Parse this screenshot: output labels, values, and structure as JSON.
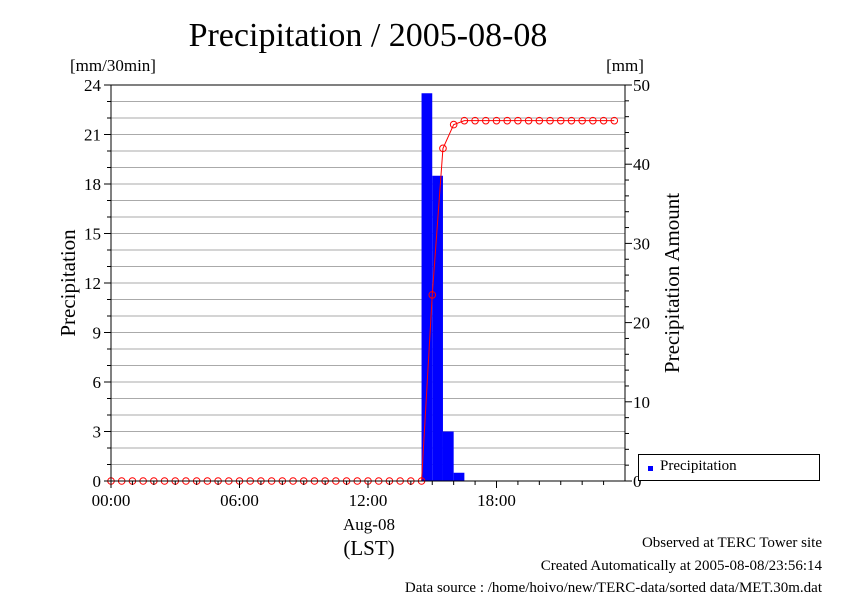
{
  "chart_data": {
    "type": "bar",
    "title": "Precipitation / 2005-08-08",
    "ylabel": "Precipitation",
    "y_unit": "[mm/30min]",
    "y2label": "Precipitation Amount",
    "y2_unit": "[mm]",
    "xlabel_date": "Aug-08",
    "xlabel_tz": "(LST)",
    "ylim": [
      0,
      24
    ],
    "y2lim": [
      0,
      50
    ],
    "xlim_hours": [
      0,
      24
    ],
    "yticks": [
      0,
      3,
      6,
      9,
      12,
      15,
      18,
      21,
      24
    ],
    "y2ticks": [
      0,
      10,
      20,
      30,
      40,
      50
    ],
    "xticks": [
      "00:00",
      "06:00",
      "12:00",
      "18:00"
    ],
    "xtick_hours": [
      0,
      6,
      12,
      18
    ],
    "grid": true,
    "legend_position": "bottom-right, outside plot",
    "series": [
      {
        "name": "Precipitation",
        "kind": "bar",
        "axis": "left",
        "color": "#0000ff",
        "x_hours": [
          14.5,
          15.0,
          15.5,
          16.0
        ],
        "values": [
          23.5,
          18.5,
          3.0,
          0.5
        ]
      },
      {
        "kind": "line",
        "axis": "right",
        "color": "#ff0000",
        "x_hours": [
          0.0,
          0.5,
          1.0,
          1.5,
          2.0,
          2.5,
          3.0,
          3.5,
          4.0,
          4.5,
          5.0,
          5.5,
          6.0,
          6.5,
          7.0,
          7.5,
          8.0,
          8.5,
          9.0,
          9.5,
          10.0,
          10.5,
          11.0,
          11.5,
          12.0,
          12.5,
          13.0,
          13.5,
          14.0,
          14.5,
          15.0,
          15.5,
          16.0,
          16.5,
          17.0,
          17.5,
          18.0,
          18.5,
          19.0,
          19.5,
          20.0,
          20.5,
          21.0,
          21.5,
          22.0,
          22.5,
          23.0,
          23.5
        ],
        "values": [
          0,
          0,
          0,
          0,
          0,
          0,
          0,
          0,
          0,
          0,
          0,
          0,
          0,
          0,
          0,
          0,
          0,
          0,
          0,
          0,
          0,
          0,
          0,
          0,
          0,
          0,
          0,
          0,
          0,
          0,
          23.5,
          42,
          45,
          45.5,
          45.5,
          45.5,
          45.5,
          45.5,
          45.5,
          45.5,
          45.5,
          45.5,
          45.5,
          45.5,
          45.5,
          45.5,
          45.5,
          45.5
        ]
      }
    ]
  },
  "legend": {
    "label": "Precipitation",
    "color": "#0000ff"
  },
  "footer": {
    "line1": "Observed at TERC Tower site",
    "line2": "Created Automatically at 2005-08-08/23:56:14",
    "line3": "Data source : /home/hoivo/new/TERC-data/sorted  data/MET.30m.dat"
  }
}
